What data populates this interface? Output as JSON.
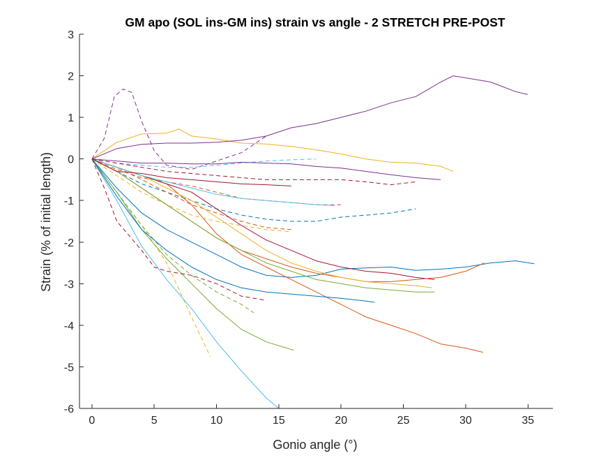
{
  "chart_data": {
    "type": "line",
    "title": "GM apo (SOL ins-GM ins) strain vs angle - 2 STRETCH PRE-POST",
    "xlabel": "Gonio angle (°)",
    "ylabel": "Strain (% of initial length)",
    "xlim": [
      -1,
      37
    ],
    "ylim": [
      -6,
      3
    ],
    "xticks": [
      0,
      5,
      10,
      15,
      20,
      25,
      30,
      35
    ],
    "yticks": [
      3,
      2,
      1,
      0,
      -1,
      -2,
      -3,
      -4,
      -5,
      -6
    ],
    "grid": false,
    "legend": "none",
    "series": [
      {
        "color": "#0072BD",
        "style": "solid",
        "x": [
          0,
          2,
          4,
          6,
          8,
          10,
          12,
          14,
          16,
          18,
          20,
          22,
          24,
          26,
          28,
          30,
          32,
          34,
          35.5
        ],
        "y": [
          0,
          -0.7,
          -1.3,
          -1.7,
          -2.0,
          -2.3,
          -2.6,
          -2.8,
          -2.85,
          -2.8,
          -2.65,
          -2.62,
          -2.6,
          -2.68,
          -2.65,
          -2.6,
          -2.5,
          -2.45,
          -2.52
        ]
      },
      {
        "color": "#0072BD",
        "style": "dashed",
        "x": [
          0,
          2,
          4,
          6,
          8,
          10,
          12,
          14,
          16,
          18,
          20,
          22,
          24,
          26
        ],
        "y": [
          0,
          -0.3,
          -0.6,
          -0.8,
          -1.0,
          -1.2,
          -1.35,
          -1.45,
          -1.5,
          -1.5,
          -1.4,
          -1.35,
          -1.3,
          -1.2
        ]
      },
      {
        "color": "#D95319",
        "style": "solid",
        "x": [
          0,
          2,
          4,
          6,
          8,
          10,
          12,
          14,
          16,
          18,
          20,
          22,
          24,
          26,
          28,
          30,
          31.4
        ],
        "y": [
          0,
          -0.2,
          -0.4,
          -0.6,
          -1.1,
          -1.8,
          -2.3,
          -2.6,
          -2.9,
          -3.2,
          -3.5,
          -3.8,
          -4.0,
          -4.2,
          -4.45,
          -4.55,
          -4.65
        ]
      },
      {
        "color": "#D95319",
        "style": "dashed",
        "x": [
          0,
          2,
          4,
          6,
          8,
          10,
          12,
          14,
          16
        ],
        "y": [
          0,
          -0.2,
          -0.5,
          -0.8,
          -1.1,
          -1.3,
          -1.5,
          -1.65,
          -1.7
        ]
      },
      {
        "color": "#EDB120",
        "style": "solid",
        "x": [
          0,
          2,
          4,
          6,
          7,
          8,
          10,
          12,
          14,
          16,
          18,
          20,
          22,
          24,
          26,
          28,
          29
        ],
        "y": [
          0,
          0.4,
          0.6,
          0.62,
          0.72,
          0.55,
          0.48,
          0.38,
          0.36,
          0.3,
          0.22,
          0.12,
          0.0,
          -0.08,
          -0.1,
          -0.18,
          -0.3
        ]
      },
      {
        "color": "#EDB120",
        "style": "dashed",
        "x": [
          0,
          2,
          4,
          6,
          8,
          9.5
        ],
        "y": [
          0,
          -0.8,
          -1.6,
          -2.5,
          -3.8,
          -4.75
        ]
      },
      {
        "color": "#7E2F8E",
        "style": "solid",
        "x": [
          0,
          2,
          4,
          6,
          8,
          10,
          12,
          14,
          16,
          18,
          20,
          22,
          24,
          26,
          28,
          29,
          30,
          32,
          34,
          35
        ],
        "y": [
          0,
          0.25,
          0.35,
          0.38,
          0.38,
          0.4,
          0.45,
          0.55,
          0.75,
          0.85,
          1.0,
          1.15,
          1.35,
          1.5,
          1.85,
          2.0,
          1.95,
          1.85,
          1.62,
          1.55
        ]
      },
      {
        "color": "#7E2F8E",
        "style": "dashed",
        "x": [
          0,
          1,
          1.8,
          2.5,
          3.2,
          4,
          5,
          6,
          8,
          10,
          12,
          14
        ],
        "y": [
          0,
          0.5,
          1.5,
          1.68,
          1.6,
          0.9,
          0.2,
          -0.15,
          -0.25,
          -0.05,
          0.15,
          0.55
        ]
      },
      {
        "color": "#77AC30",
        "style": "solid",
        "x": [
          0,
          2,
          4,
          6,
          8,
          10,
          12,
          14,
          16.2
        ],
        "y": [
          0,
          -0.8,
          -1.7,
          -2.4,
          -3.0,
          -3.6,
          -4.1,
          -4.4,
          -4.6
        ]
      },
      {
        "color": "#77AC30",
        "style": "dashed",
        "x": [
          0,
          2,
          4,
          6,
          8,
          10,
          12,
          13
        ],
        "y": [
          0,
          -0.8,
          -1.6,
          -2.3,
          -2.8,
          -3.2,
          -3.5,
          -3.7
        ]
      },
      {
        "color": "#4DBEEE",
        "style": "solid",
        "x": [
          0,
          2,
          4,
          6,
          8,
          10,
          12,
          14,
          15
        ],
        "y": [
          0,
          -1.0,
          -2.1,
          -2.9,
          -3.6,
          -4.4,
          -5.1,
          -5.75,
          -6.0
        ]
      },
      {
        "color": "#4DBEEE",
        "style": "dashed",
        "x": [
          0,
          2,
          4,
          6,
          8,
          10,
          12,
          14,
          16,
          18
        ],
        "y": [
          0,
          -0.1,
          -0.15,
          -0.2,
          -0.2,
          -0.15,
          -0.1,
          -0.05,
          -0.02,
          0.0
        ]
      },
      {
        "color": "#A2142F",
        "style": "solid",
        "x": [
          0,
          2,
          4,
          6,
          8,
          10,
          12,
          14,
          16,
          18,
          20,
          22,
          24,
          26,
          27.5
        ],
        "y": [
          0,
          -0.2,
          -0.4,
          -0.6,
          -0.8,
          -1.2,
          -1.6,
          -1.95,
          -2.2,
          -2.45,
          -2.6,
          -2.7,
          -2.75,
          -2.85,
          -2.9
        ]
      },
      {
        "color": "#A2142F",
        "style": "dashed",
        "x": [
          0,
          1,
          2,
          3,
          4,
          5,
          6,
          8,
          10,
          12,
          14
        ],
        "y": [
          0,
          -0.7,
          -1.5,
          -1.85,
          -2.2,
          -2.6,
          -2.7,
          -2.8,
          -3.0,
          -3.3,
          -3.4
        ]
      },
      {
        "color": "#0072BD",
        "style": "solid",
        "x": [
          0,
          2,
          4,
          6,
          8,
          10,
          12,
          14,
          16,
          18,
          20,
          22,
          22.7
        ],
        "y": [
          0,
          -0.9,
          -1.7,
          -2.2,
          -2.6,
          -2.9,
          -3.1,
          -3.2,
          -3.25,
          -3.3,
          -3.35,
          -3.42,
          -3.45
        ]
      },
      {
        "color": "#D95319",
        "style": "solid",
        "x": [
          0,
          2,
          4,
          6,
          8,
          10,
          12,
          14,
          16,
          18,
          20,
          22,
          24,
          26,
          28,
          30,
          31.5
        ],
        "y": [
          0,
          -0.3,
          -0.7,
          -1.1,
          -1.5,
          -1.9,
          -2.2,
          -2.4,
          -2.6,
          -2.75,
          -2.85,
          -2.95,
          -2.95,
          -2.9,
          -2.85,
          -2.7,
          -2.5
        ]
      },
      {
        "color": "#D95319",
        "style": "dashed",
        "x": [
          0,
          2,
          4,
          6,
          8,
          10,
          12,
          14,
          16,
          18,
          20
        ],
        "y": [
          0,
          -0.25,
          -0.45,
          -0.55,
          -0.65,
          -0.8,
          -0.95,
          -1.0,
          -1.05,
          -1.1,
          -1.1
        ]
      },
      {
        "color": "#EDB120",
        "style": "solid",
        "x": [
          0,
          2,
          4,
          6,
          8,
          10,
          12,
          14,
          16,
          18,
          20,
          22,
          24,
          26,
          27.3
        ],
        "y": [
          0,
          -0.2,
          -0.4,
          -0.7,
          -1.0,
          -1.4,
          -1.8,
          -2.2,
          -2.5,
          -2.7,
          -2.85,
          -2.95,
          -3.0,
          -3.05,
          -3.1
        ]
      },
      {
        "color": "#EDB120",
        "style": "dashed",
        "x": [
          0,
          2,
          4,
          6,
          8,
          10,
          12,
          14,
          16
        ],
        "y": [
          0,
          -0.4,
          -0.8,
          -1.1,
          -1.35,
          -1.5,
          -1.6,
          -1.7,
          -1.75
        ]
      },
      {
        "color": "#7E2F8E",
        "style": "solid",
        "x": [
          0,
          2,
          4,
          6,
          8,
          10,
          12,
          14,
          16,
          18,
          20,
          22,
          24,
          26,
          28
        ],
        "y": [
          0,
          -0.05,
          -0.1,
          -0.1,
          -0.12,
          -0.12,
          -0.08,
          -0.1,
          -0.12,
          -0.18,
          -0.22,
          -0.3,
          -0.38,
          -0.45,
          -0.5
        ]
      },
      {
        "color": "#77AC30",
        "style": "solid",
        "x": [
          0,
          2,
          4,
          6,
          8,
          10,
          12,
          14,
          16,
          18,
          20,
          22,
          24,
          26,
          27.5
        ],
        "y": [
          0,
          -0.3,
          -0.7,
          -1.1,
          -1.5,
          -1.9,
          -2.2,
          -2.5,
          -2.7,
          -2.9,
          -3.0,
          -3.1,
          -3.15,
          -3.2,
          -3.2
        ]
      },
      {
        "color": "#4DBEEE",
        "style": "solid",
        "x": [
          0,
          2,
          4,
          6,
          8,
          10,
          12,
          14,
          16,
          18,
          19.5
        ],
        "y": [
          0,
          -0.2,
          -0.4,
          -0.55,
          -0.7,
          -0.85,
          -0.95,
          -1.0,
          -1.05,
          -1.1,
          -1.12
        ]
      },
      {
        "color": "#A2142F",
        "style": "solid",
        "x": [
          0,
          2,
          4,
          6,
          8,
          10,
          12,
          14,
          16
        ],
        "y": [
          0,
          -0.3,
          -0.35,
          -0.45,
          -0.5,
          -0.55,
          -0.6,
          -0.62,
          -0.65
        ]
      },
      {
        "color": "#A2142F",
        "style": "dashed",
        "x": [
          0,
          2,
          4,
          6,
          8,
          10,
          12,
          14,
          16,
          18,
          20,
          22,
          24,
          26
        ],
        "y": [
          0,
          -0.1,
          -0.2,
          -0.3,
          -0.35,
          -0.4,
          -0.45,
          -0.5,
          -0.5,
          -0.5,
          -0.5,
          -0.55,
          -0.62,
          -0.55
        ]
      }
    ]
  }
}
